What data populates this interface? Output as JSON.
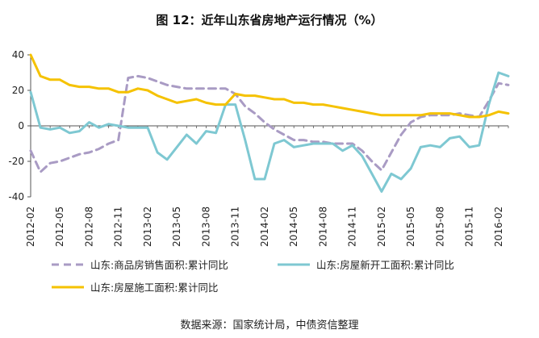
{
  "chart_data": {
    "type": "line",
    "title": "图 12：近年山东省房地产运行情况（%）",
    "ylim": [
      -40,
      40
    ],
    "yticks": [
      -40,
      -20,
      0,
      20,
      40
    ],
    "grid": false,
    "legend_position": "bottom",
    "x_labels": [
      "2012-02",
      "2012-05",
      "2012-08",
      "2012-11",
      "2013-02",
      "2013-05",
      "2013-08",
      "2013-11",
      "2014-02",
      "2014-05",
      "2014-08",
      "2014-11",
      "2015-02",
      "2015-05",
      "2015-08",
      "2015-11",
      "2016-02"
    ],
    "months": [
      "2012-02",
      "2012-03",
      "2012-04",
      "2012-05",
      "2012-06",
      "2012-07",
      "2012-08",
      "2012-09",
      "2012-10",
      "2012-11",
      "2012-12",
      "2013-01",
      "2013-02",
      "2013-03",
      "2013-04",
      "2013-05",
      "2013-06",
      "2013-07",
      "2013-08",
      "2013-09",
      "2013-10",
      "2013-11",
      "2013-12",
      "2014-01",
      "2014-02",
      "2014-03",
      "2014-04",
      "2014-05",
      "2014-06",
      "2014-07",
      "2014-08",
      "2014-09",
      "2014-10",
      "2014-11",
      "2014-12",
      "2015-01",
      "2015-02",
      "2015-03",
      "2015-04",
      "2015-05",
      "2015-06",
      "2015-07",
      "2015-08",
      "2015-09",
      "2015-10",
      "2015-11",
      "2015-12",
      "2016-01",
      "2016-02",
      "2016-03"
    ],
    "series": [
      {
        "name": "山东:商品房销售面积:累计同比",
        "color": "#a99bc4",
        "dash": true,
        "values": [
          -14,
          -26,
          -21,
          -20,
          -18,
          -16,
          -15,
          -13,
          -10,
          -8,
          27,
          28,
          27,
          25,
          23,
          22,
          21,
          21,
          21,
          21,
          21,
          18,
          11,
          7,
          2,
          -2,
          -5,
          -8,
          -8,
          -9,
          -9,
          -10,
          -10,
          -10,
          -14,
          -20,
          -25,
          -15,
          -5,
          2,
          5,
          6,
          6,
          6,
          7,
          6,
          5,
          14,
          24,
          23
        ]
      },
      {
        "name": "山东:房屋新开工面积:累计同比",
        "color": "#7ec8d2",
        "dash": false,
        "values": [
          19,
          -1,
          -2,
          -1,
          -4,
          -3,
          2,
          -1,
          1,
          0,
          -1,
          -1,
          -1,
          -15,
          -19,
          -12,
          -5,
          -10,
          -3,
          -4,
          12,
          12,
          -8,
          -30,
          -30,
          -10,
          -8,
          -12,
          -11,
          -10,
          -10,
          -10,
          -14,
          -11,
          -17,
          -27,
          -37,
          -27,
          -30,
          -24,
          -12,
          -11,
          -12,
          -7,
          -6,
          -12,
          -11,
          12,
          30,
          28
        ]
      },
      {
        "name": "山东:房屋施工面积:累计同比",
        "color": "#f5c200",
        "dash": false,
        "values": [
          40,
          28,
          26,
          26,
          23,
          22,
          22,
          21,
          21,
          19,
          19,
          21,
          20,
          17,
          15,
          13,
          14,
          15,
          13,
          12,
          12,
          18,
          17,
          17,
          16,
          15,
          15,
          13,
          13,
          12,
          12,
          11,
          10,
          9,
          8,
          7,
          6,
          6,
          6,
          6,
          6,
          7,
          7,
          7,
          6,
          5,
          5,
          6,
          8,
          7
        ]
      }
    ]
  },
  "source_note": "数据来源：国家统计局，中债资信整理"
}
